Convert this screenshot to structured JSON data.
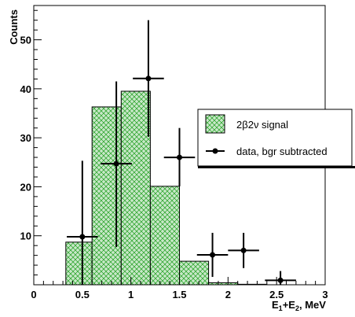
{
  "chart_data": {
    "type": "bar",
    "xlabel": {
      "main": "E",
      "sub1": "1",
      "plus": "+E",
      "sub2": "2",
      "unit": ", MeV"
    },
    "ylabel": "Counts",
    "xlim": [
      0,
      3
    ],
    "ylim": [
      0,
      57
    ],
    "x_ticks": [
      0,
      0.5,
      1,
      1.5,
      2,
      2.5,
      3
    ],
    "x_tick_labels": [
      "0",
      "0.5",
      "1",
      "1.5",
      "2",
      "2.5",
      "3"
    ],
    "y_ticks": [
      10,
      20,
      30,
      40,
      50
    ],
    "y_tick_labels": [
      "10",
      "20",
      "30",
      "40",
      "50"
    ],
    "histogram": {
      "name": "2β2ν signal",
      "bin_edges": [
        0.33,
        0.6,
        0.9,
        1.2,
        1.5,
        1.8,
        2.1,
        2.4,
        2.7
      ],
      "values": [
        8.7,
        36.3,
        39.5,
        20.1,
        4.8,
        0.4,
        0.1,
        0.0
      ],
      "fill_color": "#1f9e1f"
    },
    "data_points": {
      "name": "data, bgr subtracted",
      "x": [
        0.5,
        0.85,
        1.18,
        1.5,
        1.84,
        2.16,
        2.54
      ],
      "y": [
        9.8,
        24.7,
        42.1,
        26.0,
        6.1,
        7.0,
        0.9
      ],
      "x_err": [
        0.16,
        0.16,
        0.16,
        0.16,
        0.16,
        0.16,
        0.16
      ],
      "y_err_low": [
        9.8,
        17.0,
        11.9,
        5.9,
        4.5,
        3.6,
        0.9
      ],
      "y_err_high": [
        15.5,
        16.8,
        11.9,
        6.0,
        4.5,
        3.6,
        1.9
      ],
      "color": "#000000"
    },
    "legend": {
      "position": "right",
      "entries": [
        {
          "label": "2β2ν signal",
          "kind": "box"
        },
        {
          "label": "data, bgr subtracted",
          "kind": "marker"
        }
      ]
    },
    "grid": false
  }
}
